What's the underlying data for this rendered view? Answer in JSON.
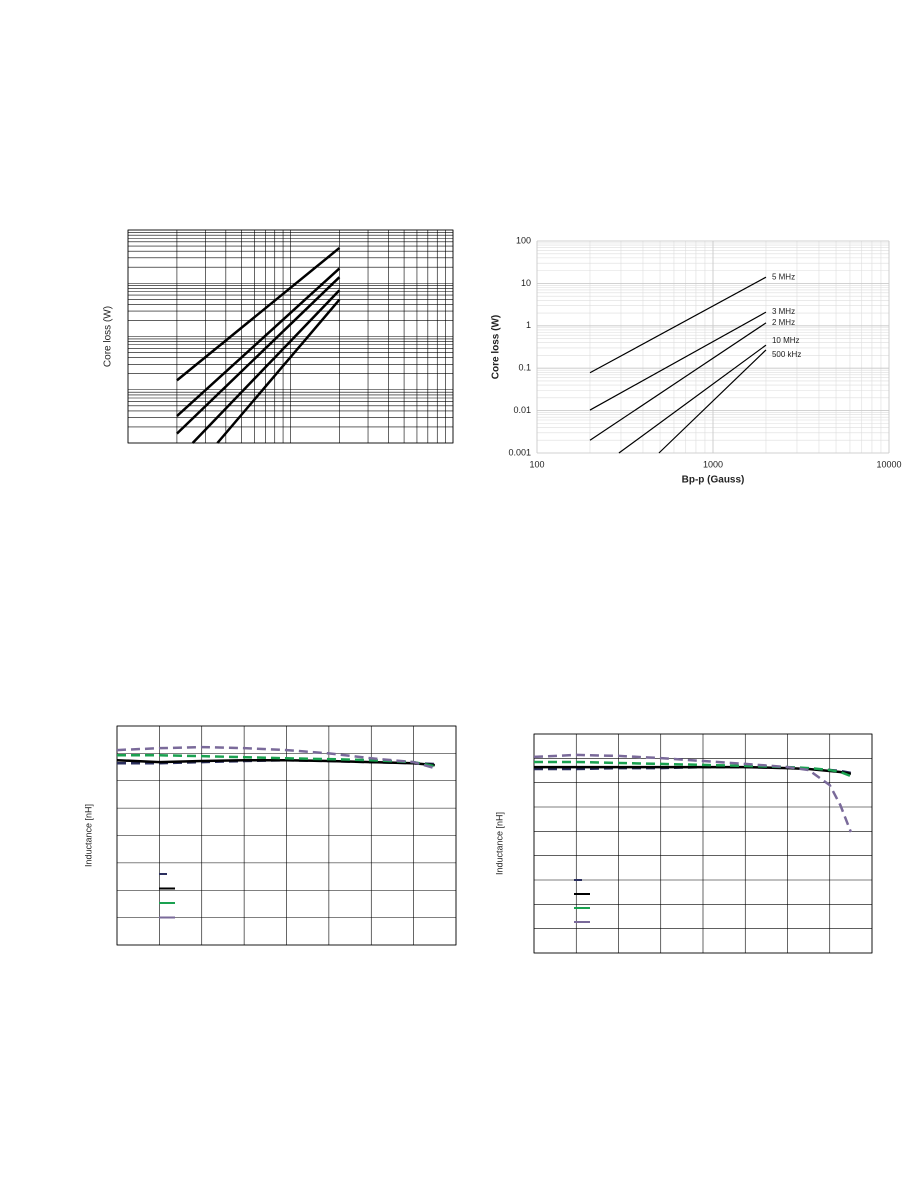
{
  "chart_data": [
    {
      "type": "line",
      "ylabel": "Core loss (W)",
      "xscale": "log",
      "yscale": "log",
      "xlim": [
        100,
        10000
      ],
      "ylim": [
        0.001,
        10
      ],
      "grid": true,
      "grid_color": "#000000",
      "series": [
        {
          "color": "#000000",
          "x": [
            200,
            2000
          ],
          "values": [
            0.015,
            4.6
          ]
        },
        {
          "color": "#000000",
          "x": [
            200,
            2000
          ],
          "values": [
            0.0032,
            1.9
          ]
        },
        {
          "color": "#000000",
          "x": [
            200,
            2000
          ],
          "values": [
            0.0015,
            1.3
          ]
        },
        {
          "color": "#000000",
          "x": [
            250,
            2000
          ],
          "values": [
            0.001,
            0.74
          ]
        },
        {
          "color": "#000000",
          "x": [
            355,
            2000
          ],
          "values": [
            0.001,
            0.49
          ]
        }
      ]
    },
    {
      "type": "line",
      "xlabel": "Bp-p (Gauss)",
      "ylabel": "Core loss (W)",
      "xscale": "log",
      "yscale": "log",
      "xlim": [
        100,
        10000
      ],
      "ylim": [
        0.001,
        100
      ],
      "xticks": [
        100,
        1000,
        10000
      ],
      "yticks": [
        0.001,
        0.01,
        0.1,
        1,
        10,
        100
      ],
      "grid": true,
      "grid_color": "#dddddd",
      "line_labels": true,
      "series": [
        {
          "name": "5 MHz",
          "color": "#000000",
          "x": [
            200,
            2000
          ],
          "values": [
            0.078,
            14
          ]
        },
        {
          "name": "3 MHz",
          "color": "#000000",
          "x": [
            200,
            2000
          ],
          "values": [
            0.0103,
            2.1
          ]
        },
        {
          "name": "2 MHz",
          "color": "#000000",
          "x": [
            200,
            2000
          ],
          "values": [
            0.002,
            1.17
          ]
        },
        {
          "name": "10 MHz",
          "color": "#000000",
          "x": [
            292,
            2000
          ],
          "values": [
            0.001,
            0.35
          ]
        },
        {
          "name": "500 kHz",
          "color": "#000000",
          "x": [
            493,
            2000
          ],
          "values": [
            0.001,
            0.27
          ]
        }
      ]
    },
    {
      "type": "line",
      "ylabel": "Inductance [nH]",
      "xlim": [
        0,
        8
      ],
      "ylim": [
        0,
        8
      ],
      "grid": true,
      "grid_color": "#000000",
      "legend": "lower left",
      "x": [
        0,
        1,
        2,
        3,
        4,
        5,
        6,
        7,
        7.5
      ],
      "series": [
        {
          "color": "#2b2f5e",
          "dash": "dashed",
          "values": [
            6.64,
            6.64,
            6.68,
            6.72,
            6.75,
            6.72,
            6.68,
            6.64,
            6.61
          ]
        },
        {
          "color": "#000000",
          "values": [
            6.75,
            6.68,
            6.72,
            6.75,
            6.75,
            6.72,
            6.68,
            6.64,
            6.57
          ]
        },
        {
          "color": "#1aa150",
          "dash": "dashed",
          "values": [
            6.93,
            6.93,
            6.9,
            6.86,
            6.82,
            6.79,
            6.75,
            6.68,
            6.53
          ]
        },
        {
          "color": "#7a6a9a",
          "dash": "dashed",
          "values": [
            7.12,
            7.19,
            7.23,
            7.19,
            7.12,
            7.0,
            6.82,
            6.68,
            6.46
          ]
        }
      ]
    },
    {
      "type": "line",
      "ylabel": "Inductance [nH]",
      "xlim": [
        0,
        8
      ],
      "ylim": [
        0,
        9
      ],
      "grid": true,
      "grid_color": "#000000",
      "legend": "lower left",
      "x": [
        0,
        1,
        2,
        3,
        4,
        5,
        6,
        6.5,
        7,
        7.25,
        7.5
      ],
      "series": [
        {
          "color": "#2b2f5e",
          "dash": "dashed",
          "values": [
            7.56,
            7.56,
            7.6,
            7.6,
            7.64,
            7.64,
            7.6,
            7.56,
            7.52,
            7.48,
            7.4
          ]
        },
        {
          "color": "#000000",
          "values": [
            7.64,
            7.64,
            7.64,
            7.64,
            7.64,
            7.64,
            7.6,
            7.56,
            7.48,
            7.44,
            7.36
          ]
        },
        {
          "color": "#1aa150",
          "dash": "dashed",
          "values": [
            7.85,
            7.85,
            7.81,
            7.77,
            7.73,
            7.69,
            7.64,
            7.6,
            7.52,
            7.44,
            7.27
          ]
        },
        {
          "color": "#7a6a9a",
          "dash": "dashed",
          "values": [
            8.06,
            8.14,
            8.1,
            8.01,
            7.89,
            7.77,
            7.64,
            7.52,
            6.9,
            6.08,
            4.97
          ]
        }
      ]
    }
  ]
}
